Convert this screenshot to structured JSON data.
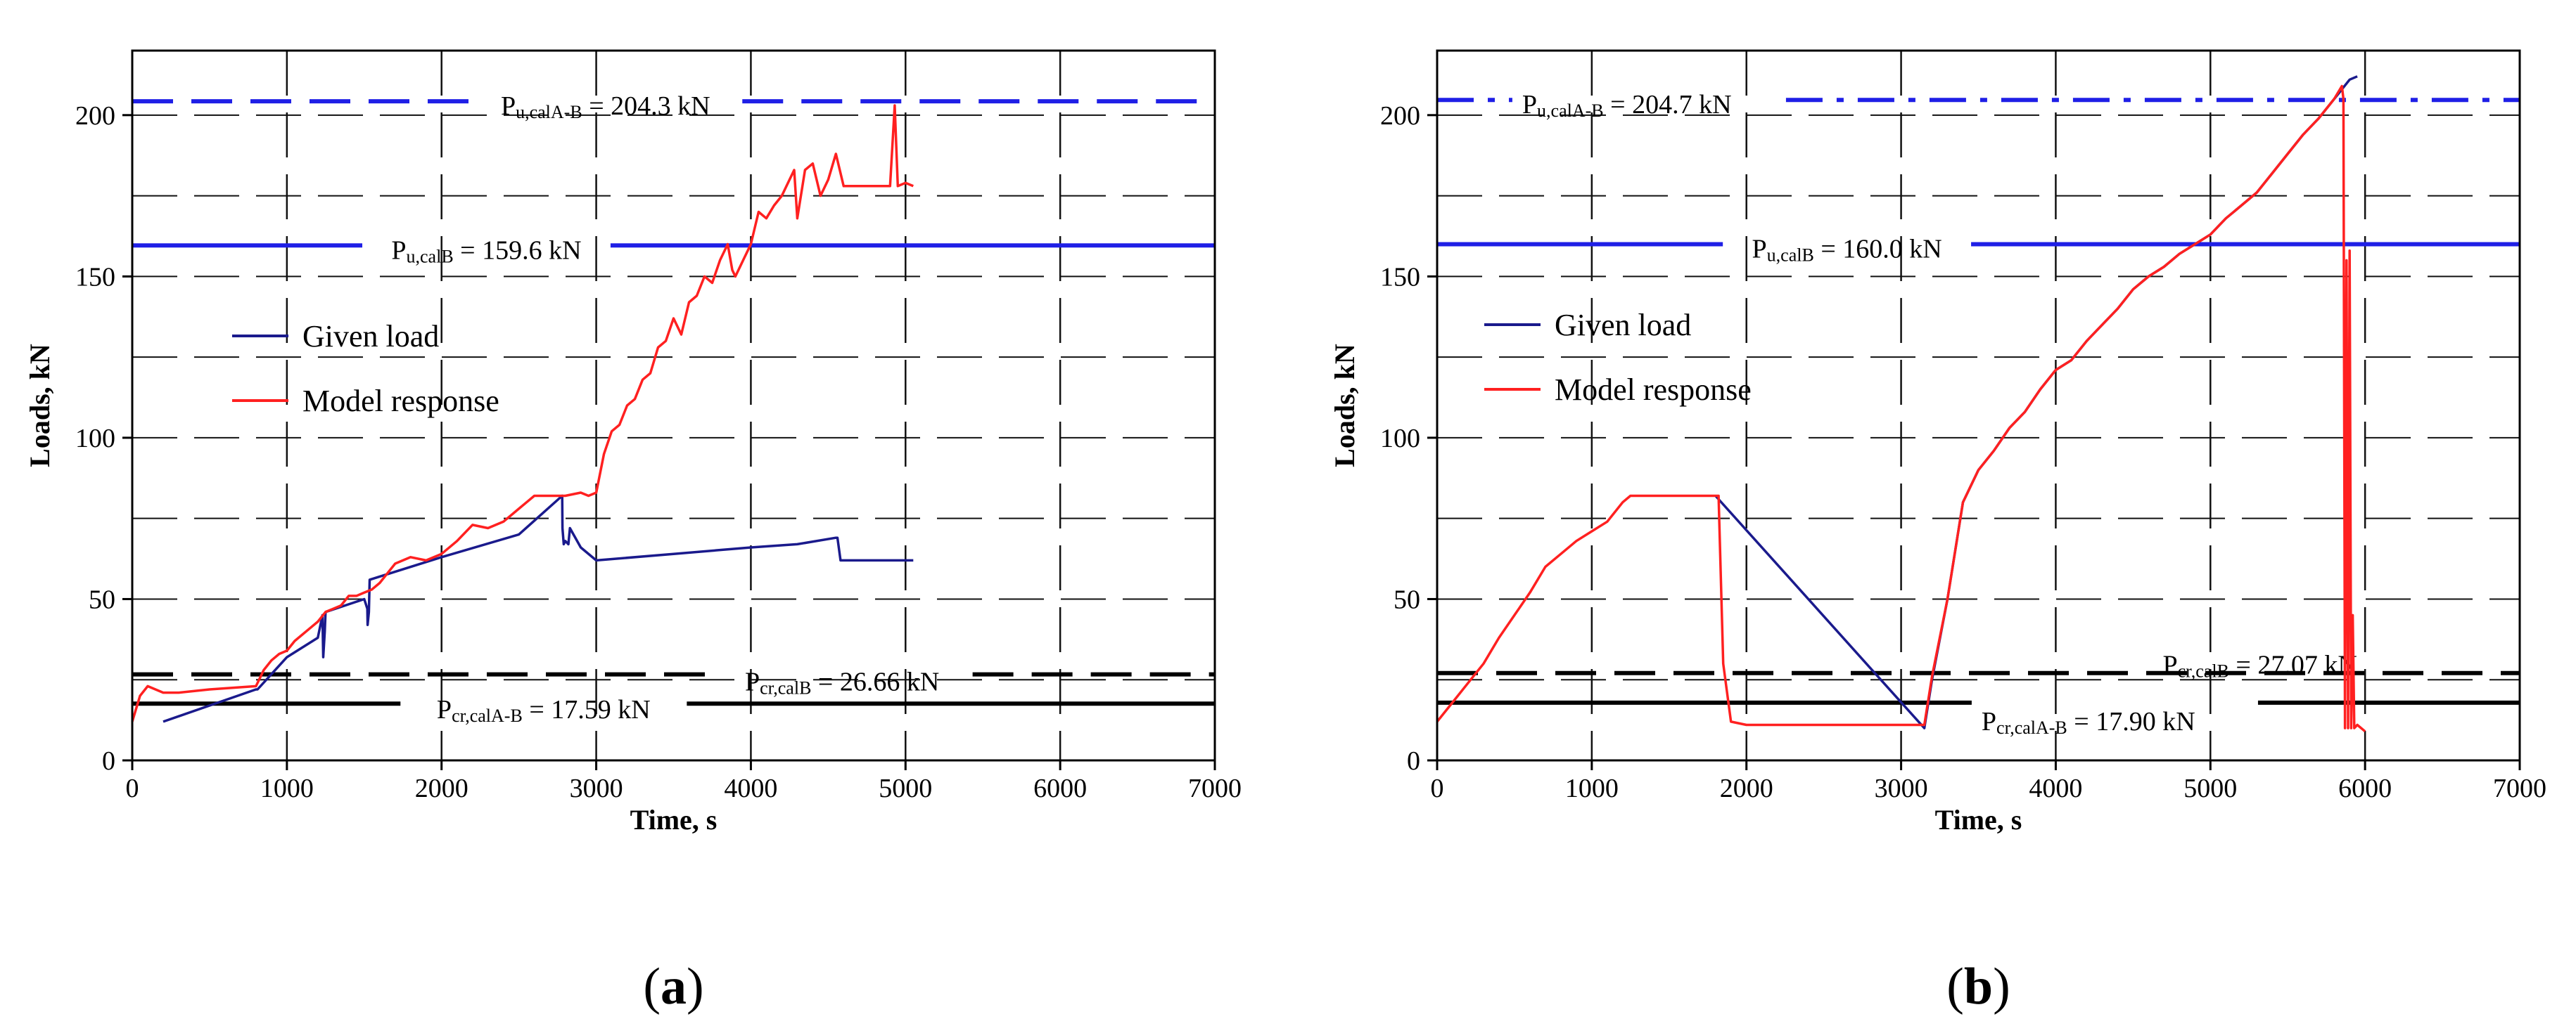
{
  "chart_data": [
    {
      "type": "line",
      "panel_label": {
        "open": "(",
        "letter": "a",
        "close": ")"
      },
      "xlabel": "Time, s",
      "ylabel": "Loads, kN",
      "xlim": [
        0,
        7000
      ],
      "ylim": [
        0,
        220
      ],
      "xticks": [
        0,
        1000,
        2000,
        3000,
        4000,
        5000,
        6000,
        7000
      ],
      "yticks": [
        0,
        50,
        100,
        150,
        200
      ],
      "grid": true,
      "legend": [
        {
          "label": "Given load",
          "color": "#1a1a8c"
        },
        {
          "label": "Model response",
          "color": "#ff2020"
        }
      ],
      "reference_lines": [
        {
          "y": 204.3,
          "style": "dashed",
          "color": "#1f1fe6",
          "label_main": "P",
          "label_sub": "u,calA-B",
          "label_value": " = 204.3 kN",
          "label_x": 3060,
          "label_dy": 10,
          "label_anchor": "middle",
          "gap": true
        },
        {
          "y": 159.6,
          "style": "solid",
          "color": "#1f1fe6",
          "label_main": "P",
          "label_sub": "u,calB",
          "label_value": " = 159.6 kN",
          "label_x": 2290,
          "label_dy": 10,
          "label_anchor": "middle",
          "gap": true
        },
        {
          "y": 26.66,
          "style": "dashed",
          "color": "#000000",
          "label_main": "P",
          "label_sub": "cr,calB",
          "label_value": " = 26.66 kN",
          "label_x": 4590,
          "label_dy": 14,
          "label_anchor": "middle",
          "gap": true
        },
        {
          "y": 17.59,
          "style": "solid",
          "color": "#000000",
          "label_main": "P",
          "label_sub": "cr,calA-B",
          "label_value": " = 17.59 kN",
          "label_x": 2660,
          "label_dy": 12,
          "label_anchor": "middle",
          "gap": true
        }
      ],
      "series": [
        {
          "name": "Given load",
          "color": "#1a1a8c",
          "x": [
            200,
            800,
            810,
            1000,
            1200,
            1230,
            1235,
            1245,
            1250,
            1500,
            1520,
            1522,
            1530,
            1535,
            2000,
            2500,
            2780,
            2782,
            2790,
            2800,
            2820,
            2830,
            2900,
            3000,
            3500,
            4000,
            4300,
            4550,
            4560,
            4580,
            4800,
            5050
          ],
          "values": [
            12,
            22,
            22,
            32,
            38,
            45,
            32,
            40,
            46,
            50,
            47,
            42,
            46,
            56,
            63,
            70,
            82,
            72,
            67,
            68,
            67,
            72,
            66,
            62,
            64,
            66,
            67,
            69,
            69,
            62,
            62,
            62
          ]
        },
        {
          "name": "Model response",
          "color": "#ff2020",
          "x": [
            0,
            50,
            100,
            150,
            200,
            300,
            500,
            800,
            850,
            900,
            950,
            1000,
            1050,
            1100,
            1150,
            1200,
            1250,
            1300,
            1350,
            1400,
            1450,
            1500,
            1550,
            1600,
            1650,
            1700,
            1800,
            1900,
            2000,
            2100,
            2200,
            2300,
            2400,
            2500,
            2550,
            2600,
            2650,
            2700,
            2800,
            2900,
            2950,
            3000,
            3050,
            3100,
            3150,
            3200,
            3250,
            3300,
            3350,
            3400,
            3450,
            3500,
            3550,
            3600,
            3650,
            3700,
            3750,
            3800,
            3850,
            3880,
            3900,
            3950,
            4000,
            4050,
            4100,
            4150,
            4200,
            4250,
            4280,
            4300,
            4350,
            4400,
            4450,
            4500,
            4550,
            4600,
            4700,
            4800,
            4900,
            4930,
            4950,
            5000,
            5050
          ],
          "values": [
            12,
            20,
            23,
            22,
            21,
            21,
            22,
            23,
            28,
            31,
            33,
            34,
            37,
            39,
            41,
            43,
            46,
            47,
            48,
            51,
            51,
            52,
            53,
            55,
            58,
            61,
            63,
            62,
            64,
            68,
            73,
            72,
            74,
            78,
            80,
            82,
            82,
            82,
            82,
            83,
            82,
            83,
            95,
            102,
            104,
            110,
            112,
            118,
            120,
            128,
            130,
            137,
            132,
            142,
            144,
            150,
            148,
            155,
            160,
            152,
            150,
            155,
            160,
            170,
            168,
            172,
            175,
            180,
            183,
            168,
            183,
            185,
            175,
            180,
            188,
            178,
            178,
            178,
            178,
            203,
            178,
            179,
            178
          ]
        }
      ]
    },
    {
      "type": "line",
      "panel_label": {
        "open": "(",
        "letter": "b",
        "close": ")"
      },
      "xlabel": "Time, s",
      "ylabel": "Loads, kN",
      "xlim": [
        0,
        7000
      ],
      "ylim": [
        0,
        220
      ],
      "xticks": [
        0,
        1000,
        2000,
        3000,
        4000,
        5000,
        6000,
        7000
      ],
      "yticks": [
        0,
        50,
        100,
        150,
        200
      ],
      "grid": true,
      "legend": [
        {
          "label": "Given load",
          "color": "#1a1a8c"
        },
        {
          "label": "Model response",
          "color": "#ff2020"
        }
      ],
      "reference_lines": [
        {
          "y": 204.7,
          "style": "dashdot",
          "color": "#1f1fe6",
          "label_main": "P",
          "label_sub": "u,calA-B",
          "label_value": " = 204.7 kN",
          "label_x": 550,
          "label_dy": 10,
          "label_anchor": "start",
          "gap": true
        },
        {
          "y": 160.0,
          "style": "solid",
          "color": "#1f1fe6",
          "label_main": "P",
          "label_sub": "u,calB",
          "label_value": " = 160.0 kN",
          "label_x": 2650,
          "label_dy": 10,
          "label_anchor": "middle",
          "gap": true
        },
        {
          "y": 27.07,
          "style": "dashed",
          "color": "#000000",
          "label_main": "P",
          "label_sub": "cr,calB",
          "label_value": " = 27.07 kN",
          "label_x": 5320,
          "label_dy": -8,
          "label_anchor": "middle",
          "gap": false
        },
        {
          "y": 17.9,
          "style": "solid",
          "color": "#000000",
          "label_main": "P",
          "label_sub": "cr,calA-B",
          "label_value": " = 17.90 kN",
          "label_x": 3520,
          "label_dy": 30,
          "label_anchor": "start",
          "gap": true
        }
      ],
      "series": [
        {
          "name": "Given load",
          "color": "#1a1a8c",
          "x": [
            1800,
            3150,
            3200,
            3300,
            3400,
            3500,
            3600,
            3700,
            3800,
            3900,
            4000,
            4100,
            4200,
            4300,
            4400,
            4500,
            4600,
            4700,
            4800,
            4900,
            5000,
            5100,
            5200,
            5300,
            5400,
            5500,
            5600,
            5700,
            5800,
            5850,
            5900,
            5950
          ],
          "values": [
            82,
            10,
            25,
            50,
            80,
            90,
            96,
            103,
            108,
            115,
            121,
            124,
            130,
            135,
            140,
            146,
            150,
            153,
            157,
            160,
            163,
            168,
            172,
            176,
            182,
            188,
            194,
            199,
            205,
            208,
            211,
            212
          ]
        },
        {
          "name": "Model response",
          "color": "#ff2020",
          "x": [
            0,
            50,
            100,
            200,
            300,
            400,
            500,
            600,
            700,
            800,
            900,
            1000,
            1100,
            1200,
            1250,
            1300,
            1400,
            1500,
            1600,
            1700,
            1800,
            1820,
            1850,
            1900,
            2000,
            2500,
            3000,
            3100,
            3150,
            3200,
            3300,
            3400,
            3500,
            3600,
            3700,
            3800,
            3900,
            4000,
            4100,
            4200,
            4300,
            4400,
            4500,
            4600,
            4700,
            4800,
            4900,
            5000,
            5100,
            5200,
            5300,
            5400,
            5500,
            5600,
            5700,
            5800,
            5850,
            5860,
            5870,
            5880,
            5890,
            5900,
            5910,
            5920,
            5930,
            5950,
            6000
          ],
          "values": [
            12,
            15,
            18,
            24,
            30,
            38,
            45,
            52,
            60,
            64,
            68,
            71,
            74,
            80,
            82,
            82,
            82,
            82,
            82,
            82,
            82,
            82,
            30,
            12,
            11,
            11,
            11,
            11,
            11,
            26,
            50,
            80,
            90,
            96,
            103,
            108,
            115,
            121,
            124,
            130,
            135,
            140,
            146,
            150,
            153,
            157,
            160,
            163,
            168,
            172,
            176,
            182,
            188,
            194,
            199,
            205,
            209,
            205,
            10,
            155,
            10,
            158,
            10,
            45,
            10,
            11,
            9
          ]
        }
      ]
    }
  ]
}
